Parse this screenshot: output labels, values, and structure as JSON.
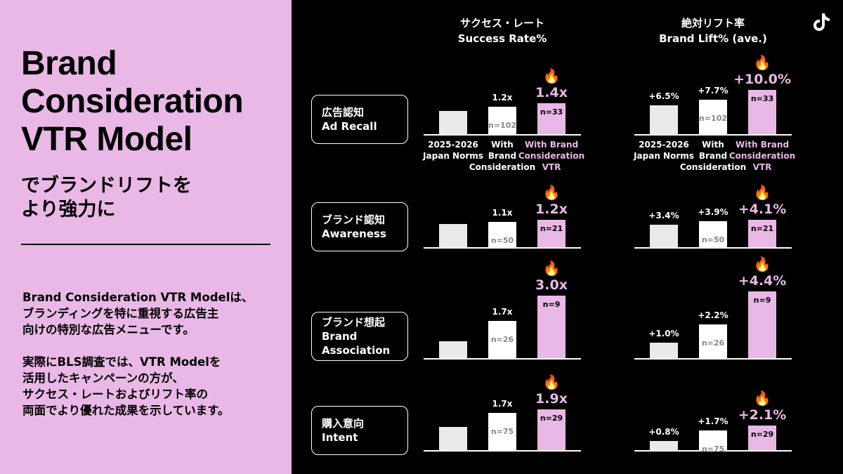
{
  "left": {
    "title_line1": "Brand",
    "title_line2": "Consideration",
    "title_line3": "VTR Model",
    "subtitle_line1": "でブランドリフトを",
    "subtitle_line2": "より強力に",
    "paragraph1": "Brand Consideration VTR Modelは、\nブランディングを特に重視する広告主\n向けの特別な広告メニューです。",
    "paragraph2": "実際にBLS調査では、VTR Modelを\n活用したキャンペーンの方が、\nサクセス・レートおよびリフト率の\n両面でより優れた成果を示しています。"
  },
  "rows": [
    {
      "ja": "広告認知",
      "en": "Ad Recall"
    },
    {
      "ja": "ブランド認知",
      "en": "Awareness"
    },
    {
      "ja": "ブランド想起",
      "en": "Brand\nAssociation"
    },
    {
      "ja": "購入意向",
      "en": "Intent"
    }
  ],
  "flame_glyph": "🔥",
  "chart_data": [
    {
      "type": "bar",
      "title_ja": "サクセス・レート",
      "title": "Success Rate%",
      "categories": [
        "2025-2026\nJapan Norms",
        "With\nBrand\nConsideration",
        "With Brand\nConsideration\nVTR"
      ],
      "groups": [
        {
          "name": "広告認知 Ad Recall",
          "values": [
            1.0,
            1.2,
            1.4
          ],
          "labels": [
            "",
            "1.2x",
            "1.4x"
          ],
          "n": [
            "",
            "n=102",
            "n=33"
          ]
        },
        {
          "name": "ブランド認知 Awareness",
          "values": [
            1.0,
            1.1,
            1.2
          ],
          "labels": [
            "",
            "1.1x",
            "1.2x"
          ],
          "n": [
            "",
            "n=50",
            "n=21"
          ]
        },
        {
          "name": "ブランド想起 Brand Association",
          "values": [
            1.0,
            1.7,
            3.0
          ],
          "labels": [
            "",
            "1.7x",
            "3.0x"
          ],
          "n": [
            "",
            "n=26",
            "n=9"
          ]
        },
        {
          "name": "購入意向 Intent",
          "values": [
            1.0,
            1.7,
            1.9
          ],
          "labels": [
            "",
            "1.7x",
            "1.9x"
          ],
          "n": [
            "",
            "n=75",
            "n=29"
          ]
        }
      ]
    },
    {
      "type": "bar",
      "title_ja": "絶対リフト率",
      "title": "Brand Lift% (ave.)",
      "categories": [
        "2025-2026\nJapan Norms",
        "With\nBrand\nConsideration",
        "With Brand\nConsideration\nVTR"
      ],
      "groups": [
        {
          "name": "広告認知 Ad Recall",
          "values": [
            6.5,
            7.7,
            10.0
          ],
          "labels": [
            "+6.5%",
            "+7.7%",
            "+10.0%"
          ],
          "n": [
            "",
            "n=102",
            "n=33"
          ]
        },
        {
          "name": "ブランド認知 Awareness",
          "values": [
            3.4,
            3.9,
            4.1
          ],
          "labels": [
            "+3.4%",
            "+3.9%",
            "+4.1%"
          ],
          "n": [
            "",
            "n=50",
            "n=21"
          ]
        },
        {
          "name": "ブランド想起 Brand Association",
          "values": [
            1.0,
            2.2,
            4.4
          ],
          "labels": [
            "+1.0%",
            "+2.2%",
            "+4.4%"
          ],
          "n": [
            "",
            "n=26",
            "n=9"
          ]
        },
        {
          "name": "購入意向 Intent",
          "values": [
            0.8,
            1.7,
            2.1
          ],
          "labels": [
            "+0.8%",
            "+1.7%",
            "+2.1%"
          ],
          "n": [
            "",
            "n=75",
            "n=29"
          ]
        }
      ]
    }
  ]
}
